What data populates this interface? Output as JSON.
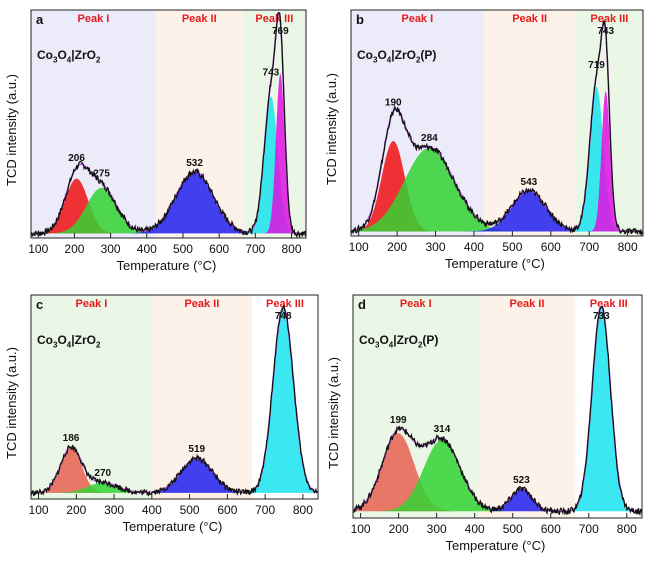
{
  "figure": {
    "panels": [
      "a",
      "b",
      "c",
      "d"
    ]
  },
  "colors": {
    "peak_I_region": "#ebebfa",
    "peak_II_region": "#fcf2ea",
    "peak_III_region": "#eaf7e6",
    "peak_I_region_cd": "#eaf7e6",
    "peak_II_region_cd": "#fcf2ea",
    "peak_III_region_cd": "#ffffff",
    "region_label": "#e51c1c",
    "red": "#ee1111",
    "green": "#33d233",
    "blue": "#2020ee",
    "cyan": "#19e3ee",
    "magenta": "#e011e0",
    "salmon": "#e86050",
    "fit": "#b050d0",
    "exp": "#111111"
  },
  "chart_data": [
    {
      "panel": "a",
      "type": "line",
      "sample_parts": [
        "Co",
        "3",
        "O",
        "4",
        "|ZrO",
        "2",
        ""
      ],
      "xlabel": "Temperature (°C)",
      "ylabel": "TCD intensity (a.u.)",
      "xlim": [
        80,
        840
      ],
      "ylim": [
        0,
        1.0
      ],
      "xticks": [
        100,
        200,
        300,
        400,
        500,
        600,
        700,
        800
      ],
      "regions": [
        {
          "label": "Peak I",
          "from": 80,
          "to": 425,
          "color": "#ebebfa"
        },
        {
          "label": "Peak II",
          "from": 425,
          "to": 665,
          "color": "#fcf2ea"
        },
        {
          "label": "Peak III",
          "from": 665,
          "to": 840,
          "color": "#eaf7e6"
        }
      ],
      "baseline": 0.02,
      "peaks": [
        {
          "center": 206,
          "height": 0.24,
          "width": 32,
          "color": "#ee1111",
          "label": "206"
        },
        {
          "center": 275,
          "height": 0.2,
          "width": 42,
          "color": "#33d233",
          "label": "275"
        },
        {
          "center": 532,
          "height": 0.27,
          "width": 52,
          "color": "#2020ee",
          "label": "532"
        },
        {
          "center": 743,
          "height": 0.6,
          "width": 19,
          "color": "#19e3ee",
          "label": "743"
        },
        {
          "center": 769,
          "height": 0.7,
          "width": 12,
          "color": "#e011e0",
          "label": "769"
        }
      ]
    },
    {
      "panel": "b",
      "type": "line",
      "sample_parts": [
        "Co",
        "3",
        "O",
        "4",
        "|ZrO",
        "2",
        "(P)"
      ],
      "xlabel": "Temperature (°C)",
      "ylabel": "TCD intensity (a.u.)",
      "xlim": [
        80,
        840
      ],
      "ylim": [
        0,
        1.0
      ],
      "xticks": [
        100,
        200,
        300,
        400,
        500,
        600,
        700,
        800
      ],
      "regions": [
        {
          "label": "Peak I",
          "from": 80,
          "to": 425,
          "color": "#ebebfa"
        },
        {
          "label": "Peak II",
          "from": 425,
          "to": 665,
          "color": "#fcf2ea"
        },
        {
          "label": "Peak III",
          "from": 665,
          "to": 840,
          "color": "#eaf7e6"
        }
      ],
      "baseline": 0.02,
      "peaks": [
        {
          "center": 190,
          "height": 0.4,
          "width": 30,
          "color": "#ee1111",
          "label": "190"
        },
        {
          "center": 284,
          "height": 0.37,
          "width": 65,
          "color": "#33d233",
          "label": "284"
        },
        {
          "center": 543,
          "height": 0.18,
          "width": 45,
          "color": "#2020ee",
          "label": "543"
        },
        {
          "center": 719,
          "height": 0.64,
          "width": 18,
          "color": "#19e3ee",
          "label": "719"
        },
        {
          "center": 743,
          "height": 0.62,
          "width": 11,
          "color": "#e011e0",
          "label": "743"
        }
      ]
    },
    {
      "panel": "c",
      "type": "line",
      "sample_parts": [
        "Co",
        "3",
        "O",
        "4",
        "|ZrO",
        "2",
        ""
      ],
      "xlabel": "Temperature (°C)",
      "ylabel": "TCD intensity (a.u.)",
      "xlim": [
        80,
        840
      ],
      "ylim": [
        0,
        1.0
      ],
      "xticks": [
        100,
        200,
        300,
        400,
        500,
        600,
        700,
        800
      ],
      "regions": [
        {
          "label": "Peak I",
          "from": 80,
          "to": 400,
          "color": "#eaf7e6"
        },
        {
          "label": "Peak II",
          "from": 400,
          "to": 665,
          "color": "#fcf2ea"
        },
        {
          "label": "Peak III",
          "from": 665,
          "to": 840,
          "color": "#ffffff"
        }
      ],
      "baseline": 0.03,
      "peaks": [
        {
          "center": 186,
          "height": 0.22,
          "width": 28,
          "color": "#e86050",
          "label": "186"
        },
        {
          "center": 270,
          "height": 0.05,
          "width": 40,
          "color": "#33d233",
          "label": "270"
        },
        {
          "center": 519,
          "height": 0.17,
          "width": 42,
          "color": "#2020ee",
          "label": "519"
        },
        {
          "center": 748,
          "height": 0.91,
          "width": 27,
          "color": "#19e3ee",
          "label": "748"
        }
      ]
    },
    {
      "panel": "d",
      "type": "line",
      "sample_parts": [
        "Co",
        "3",
        "O",
        "4",
        "|ZrO",
        "2",
        "(P)"
      ],
      "xlabel": "Temperature (°C)",
      "ylabel": "TCD intensity (a.u.)",
      "xlim": [
        80,
        840
      ],
      "ylim": [
        0,
        1.0
      ],
      "xticks": [
        100,
        200,
        300,
        400,
        500,
        600,
        700,
        800
      ],
      "regions": [
        {
          "label": "Peak I",
          "from": 80,
          "to": 410,
          "color": "#eaf7e6"
        },
        {
          "label": "Peak II",
          "from": 410,
          "to": 665,
          "color": "#fcf2ea"
        },
        {
          "label": "Peak III",
          "from": 665,
          "to": 840,
          "color": "#ffffff"
        }
      ],
      "baseline": 0.03,
      "peaks": [
        {
          "center": 199,
          "height": 0.35,
          "width": 42,
          "color": "#e86050",
          "label": "199"
        },
        {
          "center": 314,
          "height": 0.32,
          "width": 48,
          "color": "#33d233",
          "label": "314"
        },
        {
          "center": 523,
          "height": 0.1,
          "width": 28,
          "color": "#2020ee",
          "label": "523"
        },
        {
          "center": 733,
          "height": 0.92,
          "width": 24,
          "color": "#19e3ee",
          "label": "733"
        }
      ]
    }
  ]
}
